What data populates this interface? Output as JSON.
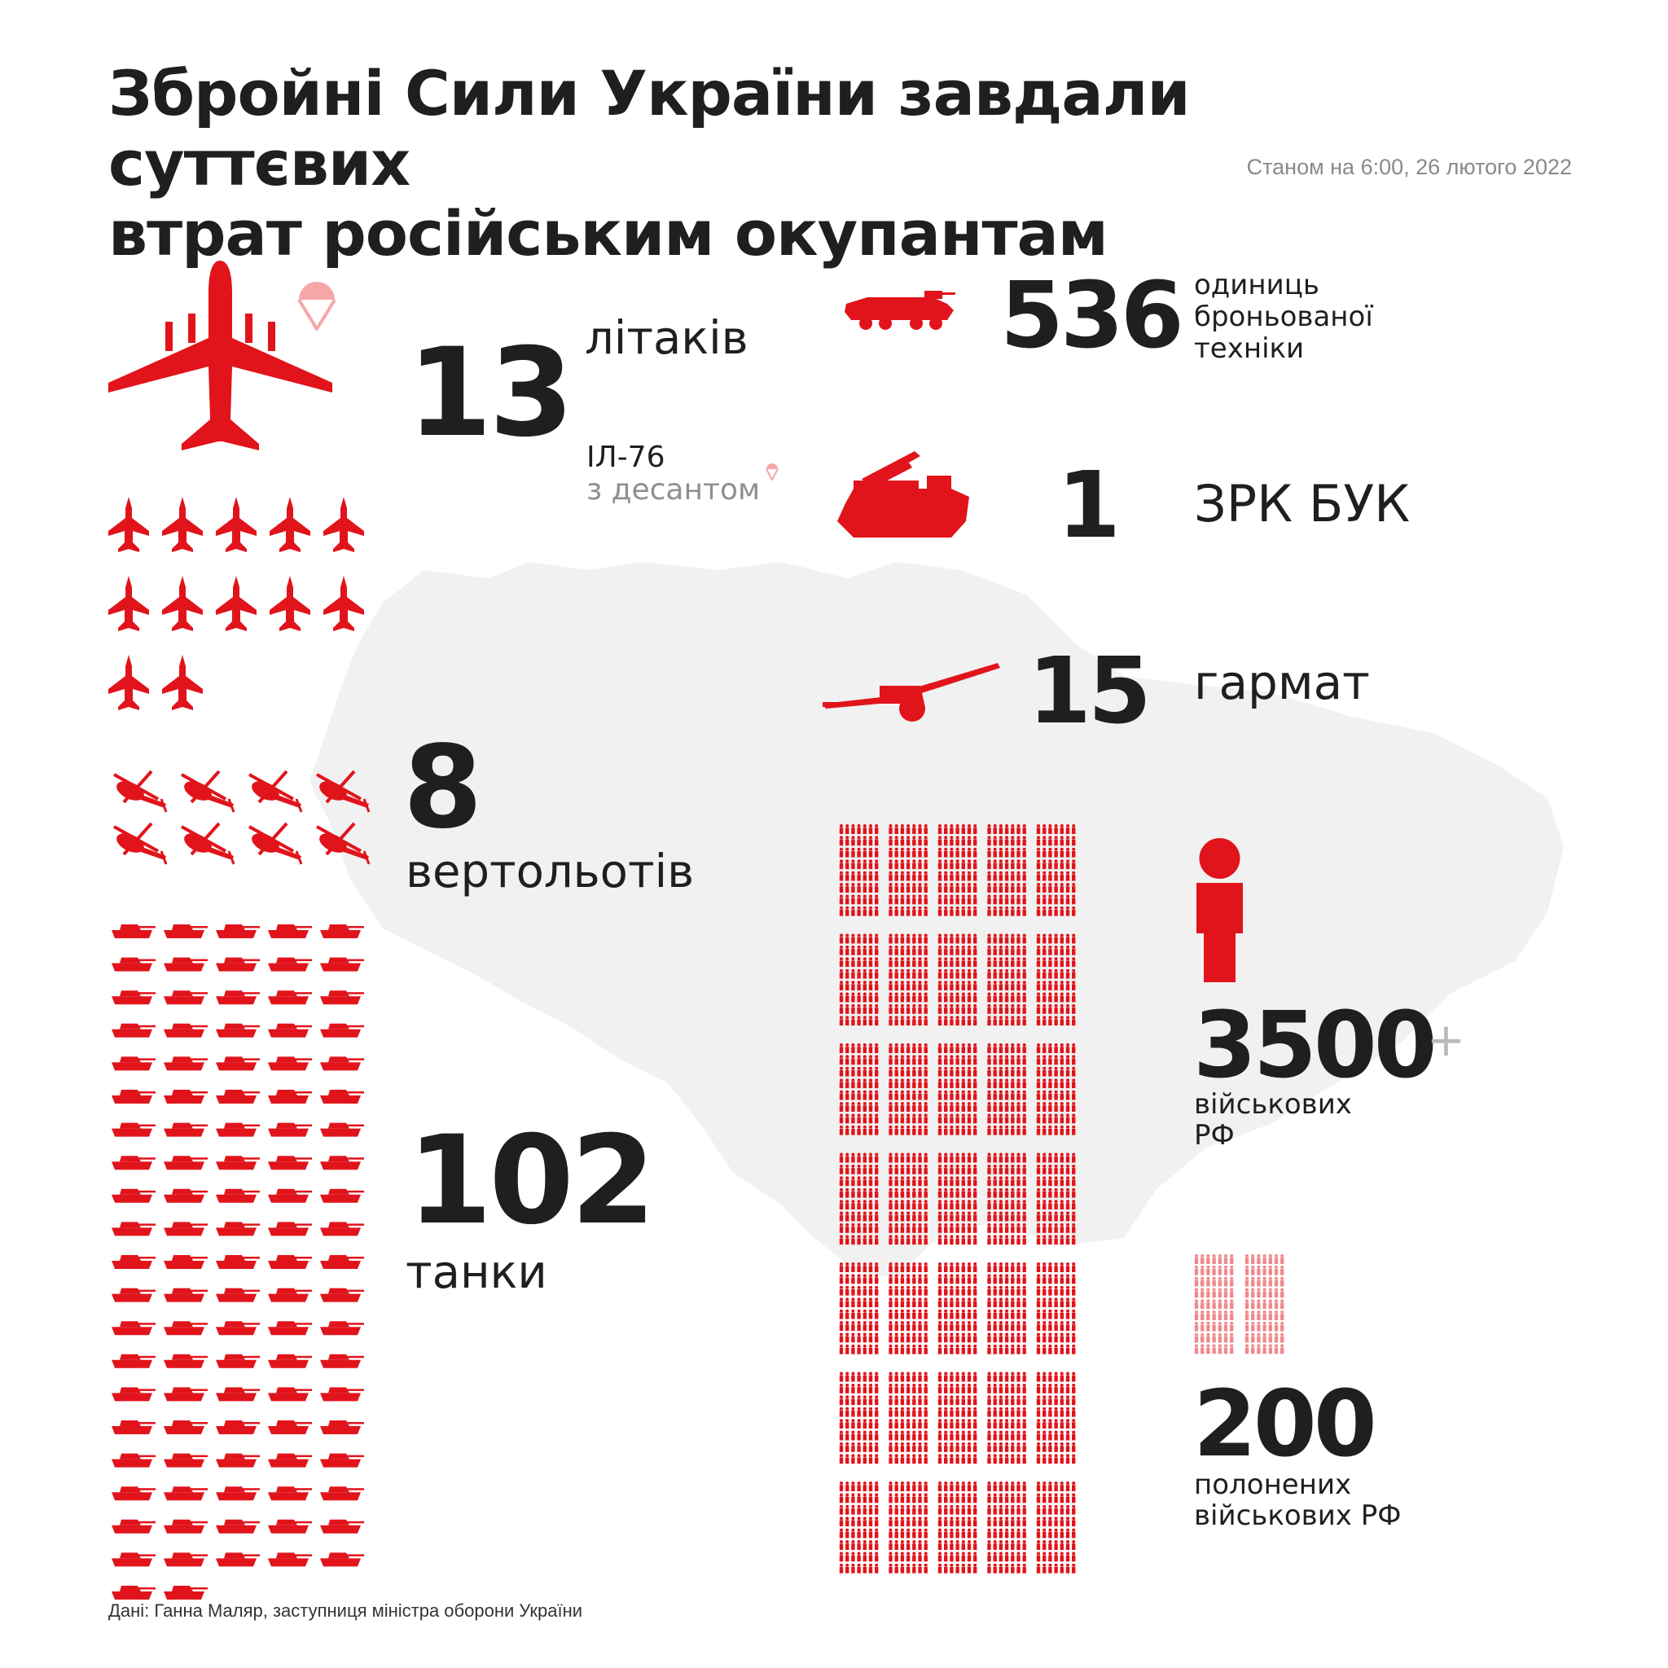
{
  "colors": {
    "accent_red": "#e1141b",
    "flag_blue": "#0a7ac8",
    "flag_yellow": "#ffdd00",
    "map_grey": "#f1f1f1",
    "text_dark": "#1f1f1f",
    "text_grey": "#8f8f8f"
  },
  "header": {
    "title_line1": "Збройні Сили України завдали суттєвих",
    "title_line2": "втрат російським окупантам",
    "date": "Станом на 6:00, 26 лютого 2022"
  },
  "stats": {
    "planes": {
      "value": "13",
      "label": "літаків",
      "note_line1": "ІЛ-76",
      "note_line2": "з десантом",
      "icon": "transport-plane-icon",
      "marker": "parachute-icon"
    },
    "fighters": {
      "count": 12,
      "icon": "fighter-jet-icon"
    },
    "helicopters": {
      "value": "8",
      "label": "вертольотів",
      "count": 8,
      "icon": "helicopter-icon"
    },
    "tanks": {
      "value": "102",
      "label": "танки",
      "count": 102,
      "icon": "tank-icon"
    },
    "armored": {
      "value": "536",
      "label_line1": "одиниць",
      "label_line2": "броньованої",
      "label_line3": "техніки",
      "icon": "armored-vehicle-icon"
    },
    "buk": {
      "value": "1",
      "label": "ЗРК БУК",
      "icon": "missile-launcher-icon"
    },
    "artillery": {
      "value": "15",
      "label": "гармат",
      "icon": "howitzer-icon"
    },
    "soldiers": {
      "value": "3500",
      "plus": "+",
      "label_line1": "військових",
      "label_line2": "РФ",
      "count": 3500,
      "icon": "soldier-icon"
    },
    "prisoners": {
      "value": "200",
      "label_line1": "полонених",
      "label_line2": "військових РФ",
      "count": 200
    }
  },
  "footer": {
    "source": "Дані: Ганна Маляр, заступниця міністра оборони України"
  }
}
